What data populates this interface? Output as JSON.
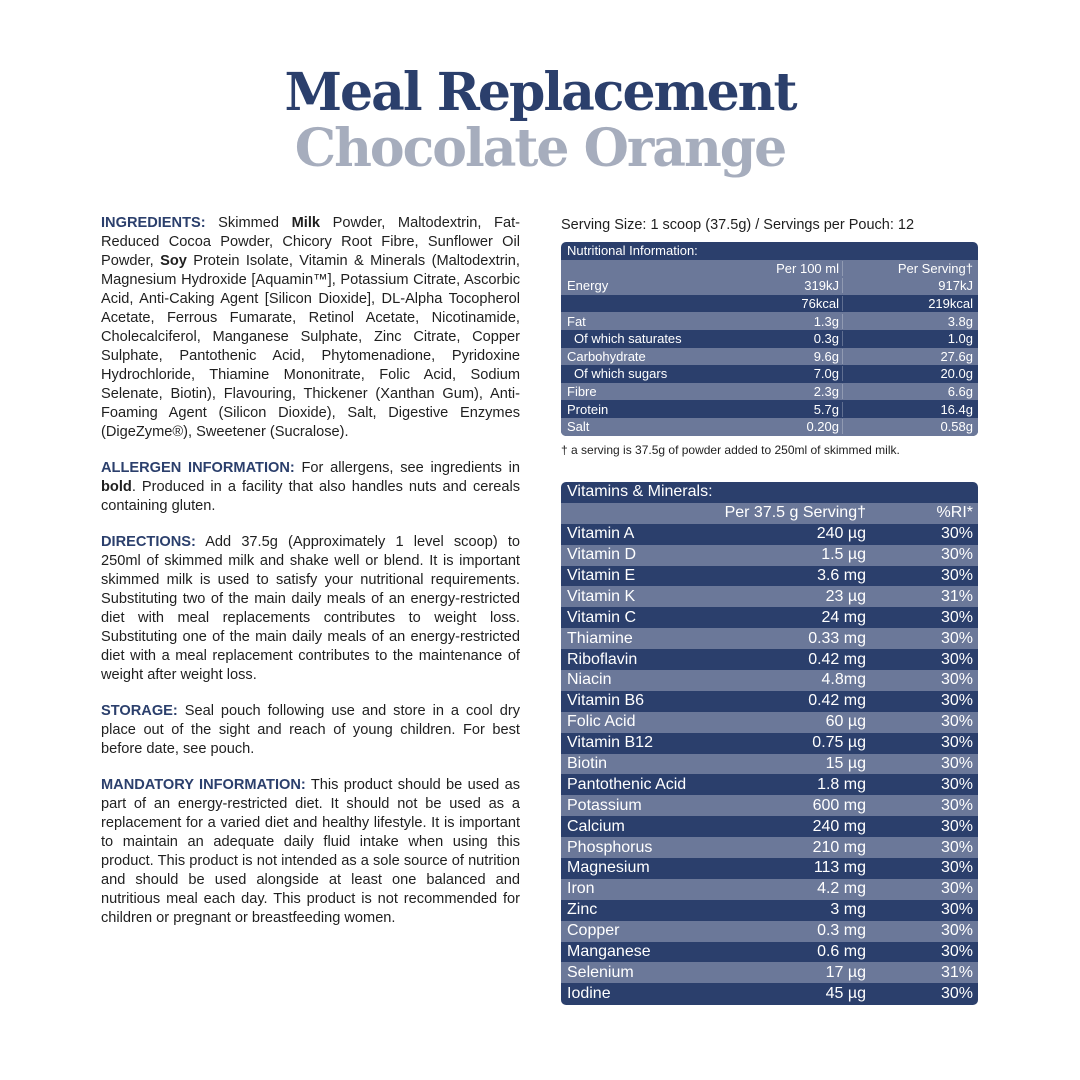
{
  "header": {
    "title": "Meal Replacement",
    "subtitle": "Chocolate Orange"
  },
  "left": {
    "ingredients": {
      "label": "INGREDIENTS:",
      "parts": [
        " Skimmed ",
        "Milk",
        " Powder, Maltodextrin, Fat-Reduced Cocoa Powder, Chicory Root Fibre, Sunflower Oil Powder, ",
        "Soy",
        " Protein Isolate, Vitamin & Minerals (Maltodextrin, Magnesium Hydroxide [Aquamin™], Potassium Citrate, Ascorbic Acid, Anti-Caking Agent [Silicon Dioxide], DL-Alpha Tocopherol Acetate, Ferrous Fumarate, Retinol Acetate, Nicotinamide, Cholecalciferol, Manganese Sulphate, Zinc Citrate, Copper Sulphate, Pantothenic Acid, Phytomenadione, Pyridoxine Hydrochloride, Thiamine Mononitrate, Folic Acid, Sodium Selenate, Biotin), Flavouring, Thickener (Xanthan Gum), Anti-Foaming Agent (Silicon Dioxide), Salt, Digestive Enzymes (DigeZyme®), Sweetener (Sucralose)."
      ]
    },
    "allergen": {
      "label": "ALLERGEN INFORMATION:",
      "text1": " For allergens, see ingredients in ",
      "bold": "bold",
      "text2": ". Produced in a facility that also handles nuts and cereals containing gluten."
    },
    "directions": {
      "label": "DIRECTIONS:",
      "text": " Add 37.5g (Approximately 1 level scoop) to 250ml of skimmed milk and shake well or blend. It is important skimmed milk is used to satisfy your nutritional requirements. Substituting two of the main daily meals of an energy-restricted diet with meal replacements contributes to weight loss. Substituting one of the main daily meals of an energy-restricted diet with a meal replacement contributes to the maintenance of weight after weight loss."
    },
    "storage": {
      "label": "STORAGE:",
      "text": " Seal pouch following use and store in a cool dry place out of the sight and reach of young children. For best before date, see pouch."
    },
    "mandatory": {
      "label": "MANDATORY INFORMATION:",
      "text": " This product should be used as part of an energy-restricted diet. It should not be used as a replacement for a varied diet and healthy lifestyle. It is important to maintain an adequate daily fluid intake when using this product. This product is not intended as a sole source of nutrition and should be used alongside at least one balanced and nutritious meal each day. This product is not recommended for children or pregnant or breastfeeding women."
    }
  },
  "nutrition": {
    "serving_line": "Serving Size: 1 scoop (37.5g) / Servings per Pouch: 12",
    "title": "Nutritional Information:",
    "col_a": "Per 100 ml",
    "col_b": "Per Serving†",
    "rows": [
      {
        "name": "Energy",
        "a": "319kJ",
        "b": "917kJ",
        "alt": true
      },
      {
        "name": "",
        "a": "76kcal",
        "b": "219kcal",
        "alt": false
      },
      {
        "name": "Fat",
        "a": "1.3g",
        "b": "3.8g",
        "alt": true
      },
      {
        "name": "Of which saturates",
        "a": "0.3g",
        "b": "1.0g",
        "alt": false,
        "indent": true
      },
      {
        "name": "Carbohydrate",
        "a": "9.6g",
        "b": "27.6g",
        "alt": true
      },
      {
        "name": "Of which sugars",
        "a": "7.0g",
        "b": "20.0g",
        "alt": false,
        "indent": true
      },
      {
        "name": "Fibre",
        "a": "2.3g",
        "b": "6.6g",
        "alt": true
      },
      {
        "name": "Protein",
        "a": "5.7g",
        "b": "16.4g",
        "alt": false
      },
      {
        "name": "Salt",
        "a": "0.20g",
        "b": "0.58g",
        "alt": true
      }
    ],
    "footnote": "† a serving is 37.5g of powder added to 250ml of skimmed milk."
  },
  "vitamins": {
    "title": "Vitamins & Minerals:",
    "col_a": "Per 37.5 g Serving†",
    "col_b": "%RI*",
    "rows": [
      {
        "name": "Vitamin A",
        "a": "240 µg",
        "b": "30%"
      },
      {
        "name": "Vitamin D",
        "a": "1.5 µg",
        "b": "30%"
      },
      {
        "name": "Vitamin E",
        "a": "3.6 mg",
        "b": "30%"
      },
      {
        "name": "Vitamin K",
        "a": "23 µg",
        "b": "31%"
      },
      {
        "name": "Vitamin C",
        "a": "24 mg",
        "b": "30%"
      },
      {
        "name": "Thiamine",
        "a": "0.33 mg",
        "b": "30%"
      },
      {
        "name": "Riboflavin",
        "a": "0.42 mg",
        "b": "30%"
      },
      {
        "name": "Niacin",
        "a": "4.8mg",
        "b": "30%"
      },
      {
        "name": "Vitamin B6",
        "a": "0.42 mg",
        "b": "30%"
      },
      {
        "name": "Folic Acid",
        "a": "60 µg",
        "b": "30%"
      },
      {
        "name": "Vitamin B12",
        "a": "0.75 µg",
        "b": "30%"
      },
      {
        "name": "Biotin",
        "a": "15 µg",
        "b": "30%"
      },
      {
        "name": "Pantothenic Acid",
        "a": "1.8 mg",
        "b": "30%"
      },
      {
        "name": "Potassium",
        "a": "600 mg",
        "b": "30%"
      },
      {
        "name": "Calcium",
        "a": "240 mg",
        "b": "30%"
      },
      {
        "name": "Phosphorus",
        "a": "210 mg",
        "b": "30%"
      },
      {
        "name": "Magnesium",
        "a": "113 mg",
        "b": "30%"
      },
      {
        "name": "Iron",
        "a": "4.2 mg",
        "b": "30%"
      },
      {
        "name": "Zinc",
        "a": "3 mg",
        "b": "30%"
      },
      {
        "name": "Copper",
        "a": "0.3 mg",
        "b": "30%"
      },
      {
        "name": "Manganese",
        "a": "0.6 mg",
        "b": "30%"
      },
      {
        "name": "Selenium",
        "a": "17 µg",
        "b": "31%"
      },
      {
        "name": "Iodine",
        "a": "45 µg",
        "b": "30%"
      }
    ]
  },
  "colors": {
    "navy": "#2b3f6c",
    "stripe": "#6b7899",
    "subtitle_grey": "#a6adbd"
  }
}
